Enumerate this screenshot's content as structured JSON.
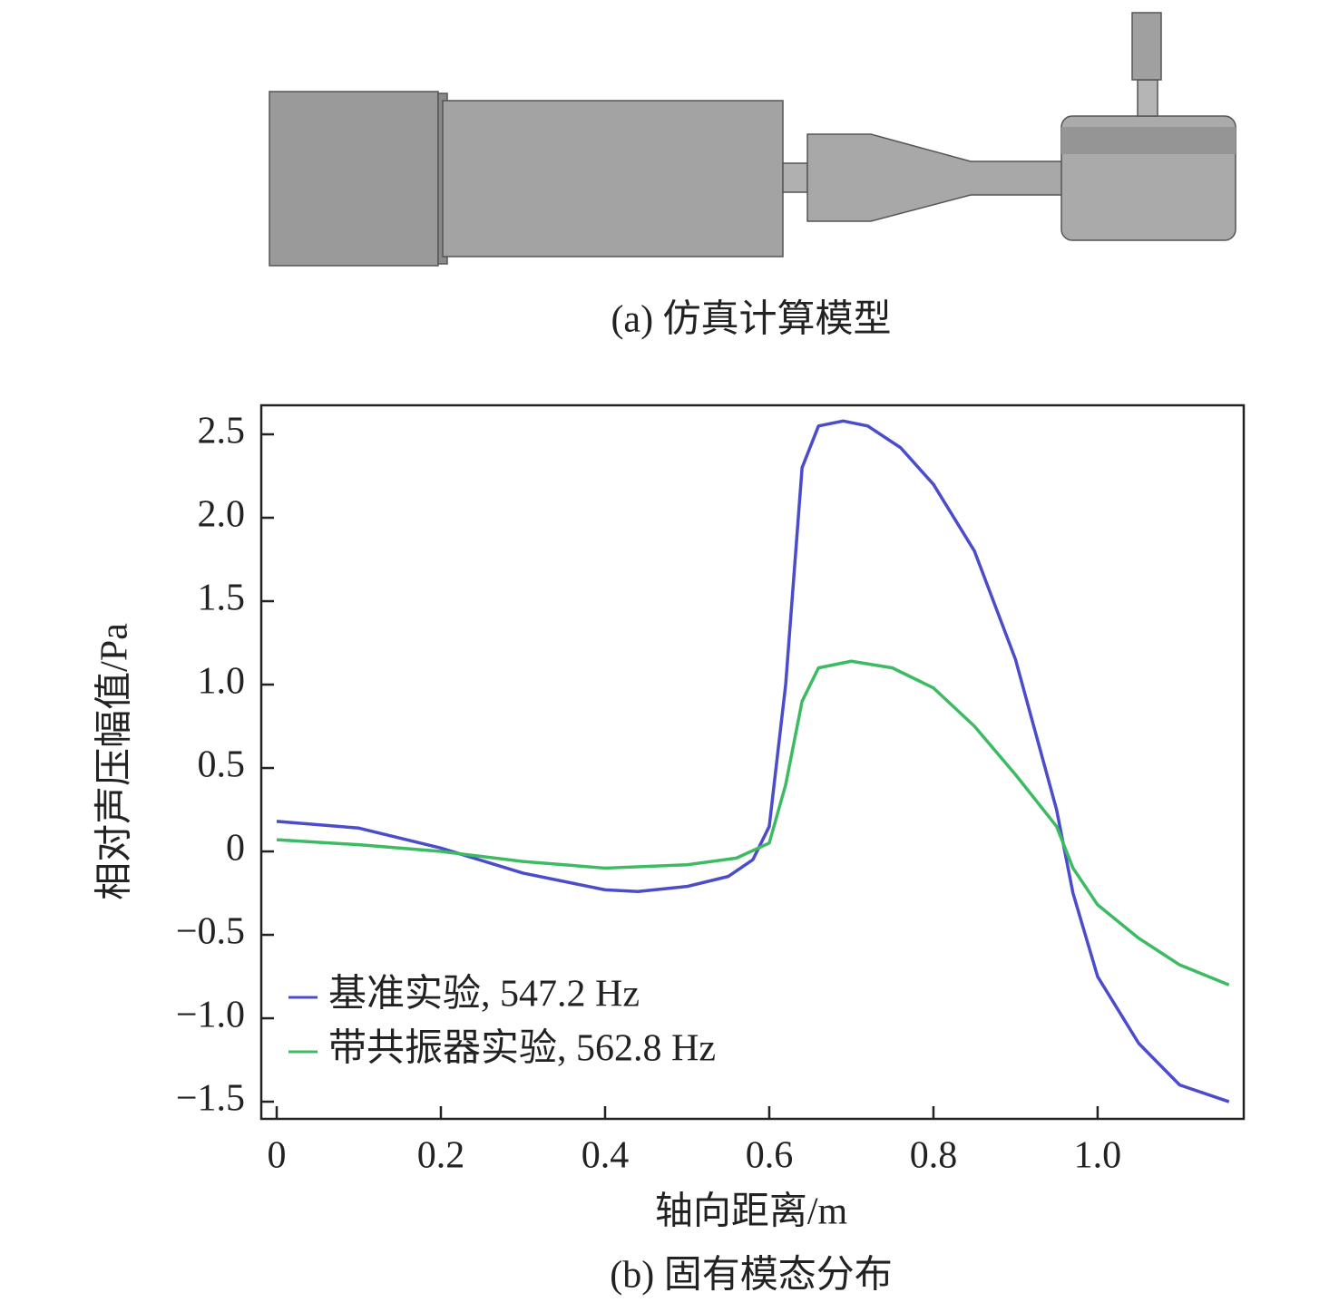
{
  "figure_a": {
    "caption": "(a) 仿真计算模型"
  },
  "chart_data": {
    "type": "line",
    "caption": "(b) 固有模态分布",
    "x_label": "轴向距离/m",
    "y_label": "相对声压幅值/Pa",
    "xlim": [
      -0.0188,
      1.178
    ],
    "ylim": [
      -1.603,
      2.674
    ],
    "xticks": [
      0,
      0.2,
      0.4,
      0.6,
      0.8,
      {
        "value": 1,
        "label": "1.0"
      }
    ],
    "yticks": [
      {
        "value": -1.5,
        "label": "−1.5"
      },
      {
        "value": -1,
        "label": "−1.0"
      },
      {
        "value": -0.5,
        "label": "−0.5"
      },
      0,
      0.5,
      {
        "value": 1,
        "label": "1.0"
      },
      1.5,
      {
        "value": 2,
        "label": "2.0"
      },
      2.5
    ],
    "legend": "lower left",
    "series": [
      {
        "name": "基准实验, 547.2 Hz",
        "color": "#4a4ccc",
        "x": [
          0,
          0.1,
          0.2,
          0.3,
          0.4,
          0.44,
          0.5,
          0.55,
          0.58,
          0.6,
          0.62,
          0.64,
          0.66,
          0.69,
          0.72,
          0.76,
          0.8,
          0.85,
          0.9,
          0.95,
          0.97,
          1.0,
          1.05,
          1.1,
          1.16
        ],
        "values": [
          0.18,
          0.14,
          0.02,
          -0.13,
          -0.23,
          -0.24,
          -0.21,
          -0.15,
          -0.05,
          0.15,
          1.0,
          2.3,
          2.55,
          2.58,
          2.55,
          2.42,
          2.2,
          1.8,
          1.15,
          0.25,
          -0.25,
          -0.75,
          -1.15,
          -1.4,
          -1.5
        ]
      },
      {
        "name": "带共振器实验, 562.8 Hz",
        "color": "#3dbb62",
        "x": [
          0,
          0.1,
          0.2,
          0.3,
          0.4,
          0.5,
          0.56,
          0.6,
          0.62,
          0.64,
          0.66,
          0.7,
          0.75,
          0.8,
          0.85,
          0.9,
          0.95,
          0.97,
          1.0,
          1.05,
          1.1,
          1.16
        ],
        "values": [
          0.07,
          0.04,
          0.0,
          -0.06,
          -0.1,
          -0.08,
          -0.04,
          0.05,
          0.4,
          0.9,
          1.1,
          1.14,
          1.1,
          0.98,
          0.75,
          0.46,
          0.15,
          -0.1,
          -0.32,
          -0.52,
          -0.68,
          -0.8
        ]
      }
    ]
  }
}
